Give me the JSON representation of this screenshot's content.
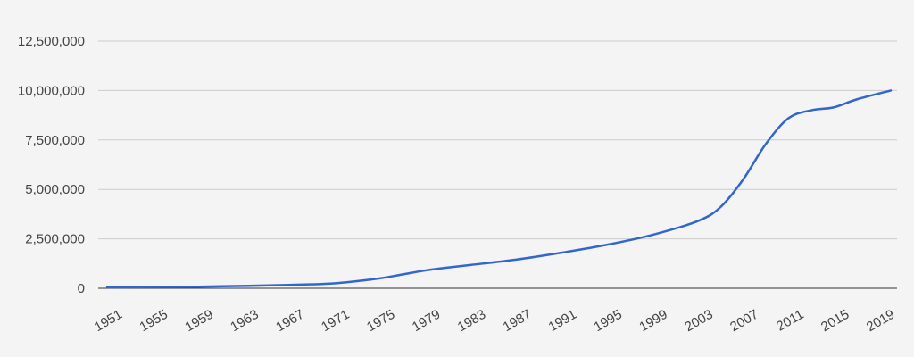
{
  "chart_data": {
    "type": "line",
    "title": "",
    "xlabel": "",
    "ylabel": "",
    "grid": true,
    "legend": "none",
    "ylim": [
      0,
      12500000
    ],
    "xlim": [
      1951,
      2020
    ],
    "y_ticks": [
      0,
      2500000,
      5000000,
      7500000,
      10000000,
      12500000
    ],
    "y_tick_labels": [
      "0",
      "2,500,000",
      "5,000,000",
      "7,500,000",
      "10,000,000",
      "12,500,000"
    ],
    "x_ticks": [
      1951,
      1955,
      1959,
      1963,
      1967,
      1971,
      1975,
      1979,
      1983,
      1987,
      1991,
      1995,
      1999,
      2003,
      2007,
      2011,
      2015,
      2019
    ],
    "x_tick_labels": [
      "1951",
      "1955",
      "1959",
      "1963",
      "1967",
      "1971",
      "1975",
      "1979",
      "1983",
      "1987",
      "1991",
      "1995",
      "1999",
      "2003",
      "2007",
      "2011",
      "2015",
      "2019"
    ],
    "series": [
      {
        "color": "#3366cc",
        "x": [
          1951,
          1955,
          1959,
          1963,
          1967,
          1970,
          1972,
          1975,
          1977,
          1979,
          1981,
          1983,
          1987,
          1991,
          1995,
          1999,
          2003,
          2005,
          2007,
          2009,
          2011,
          2013,
          2015,
          2017,
          2020
        ],
        "y": [
          50000,
          60000,
          80000,
          120000,
          170000,
          220000,
          300000,
          500000,
          700000,
          900000,
          1050000,
          1180000,
          1450000,
          1800000,
          2200000,
          2700000,
          3400000,
          4100000,
          5500000,
          7300000,
          8600000,
          9000000,
          9150000,
          9550000,
          10000000
        ]
      }
    ]
  }
}
